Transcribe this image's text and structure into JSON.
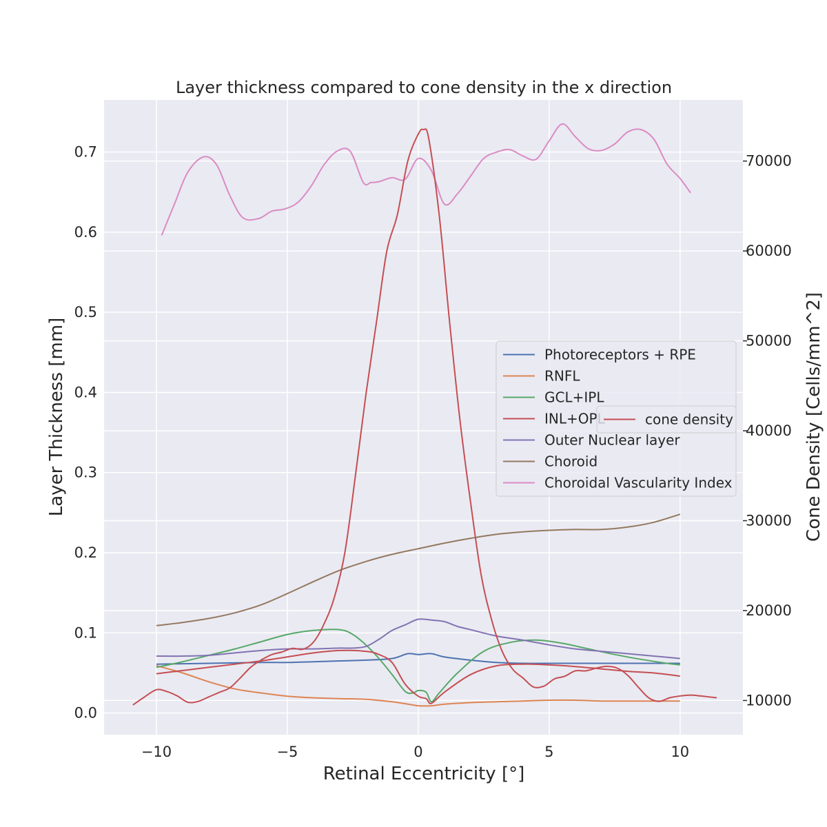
{
  "chart_data": {
    "type": "line",
    "title": "Layer thickness compared to cone density in the x direction",
    "xlabel": "Retinal Eccentricity [°]",
    "ylabel": "Layer Thickness [mm]",
    "y2label": "Cone Density [Cells/mm^2]",
    "xlim": [
      -12.0,
      12.4
    ],
    "ylim": [
      -0.027,
      0.765
    ],
    "y2lim": [
      6200,
      76800
    ],
    "xticks": [
      -10,
      -5,
      0,
      5,
      10
    ],
    "xtick_labels": [
      "−10",
      "−5",
      "0",
      "5",
      "10"
    ],
    "yticks": [
      0.0,
      0.1,
      0.2,
      0.3,
      0.4,
      0.5,
      0.6,
      0.7
    ],
    "ytick_labels": [
      "0.0",
      "0.1",
      "0.2",
      "0.3",
      "0.4",
      "0.5",
      "0.6",
      "0.7"
    ],
    "y2ticks": [
      10000,
      20000,
      30000,
      40000,
      50000,
      60000,
      70000
    ],
    "y2tick_labels": [
      "10000",
      "20000",
      "30000",
      "40000",
      "50000",
      "60000",
      "70000"
    ],
    "grid": true,
    "legend_left_placement": "center-right",
    "legend_right_placement": "center-right",
    "series": [
      {
        "name": "Photoreceptors + RPE",
        "color": "#4c72b0",
        "axis": "left",
        "x": [
          -10,
          -8,
          -6,
          -5,
          -4,
          -3,
          -2,
          -1,
          -0.4,
          0,
          0.5,
          1,
          2,
          3,
          4,
          5,
          6,
          7,
          8,
          9,
          10
        ],
        "y": [
          0.061,
          0.062,
          0.063,
          0.063,
          0.064,
          0.065,
          0.066,
          0.068,
          0.074,
          0.073,
          0.074,
          0.07,
          0.066,
          0.063,
          0.062,
          0.062,
          0.062,
          0.062,
          0.062,
          0.062,
          0.062
        ]
      },
      {
        "name": "RNFL",
        "color": "#dd8452",
        "axis": "left",
        "x": [
          -10,
          -9,
          -8,
          -7,
          -6,
          -5,
          -4,
          -3,
          -2,
          -1,
          -0.2,
          0,
          0.5,
          1,
          2,
          3,
          4,
          5,
          6,
          7,
          8,
          9,
          10
        ],
        "y": [
          0.059,
          0.05,
          0.039,
          0.03,
          0.025,
          0.021,
          0.019,
          0.018,
          0.017,
          0.014,
          0.01,
          0.009,
          0.009,
          0.011,
          0.013,
          0.014,
          0.015,
          0.016,
          0.016,
          0.015,
          0.015,
          0.015,
          0.015
        ]
      },
      {
        "name": "GCL+IPL",
        "color": "#55a868",
        "axis": "left",
        "x": [
          -10,
          -9,
          -8,
          -7,
          -6,
          -5,
          -4,
          -3,
          -2.5,
          -2,
          -1.5,
          -1,
          -0.5,
          -0.2,
          0,
          0.3,
          0.5,
          0.8,
          1.5,
          2.5,
          3.5,
          4.5,
          5.5,
          6.5,
          7.5,
          8.5,
          9.5,
          10
        ],
        "y": [
          0.057,
          0.064,
          0.072,
          0.08,
          0.089,
          0.098,
          0.103,
          0.104,
          0.098,
          0.085,
          0.068,
          0.048,
          0.027,
          0.025,
          0.028,
          0.026,
          0.014,
          0.025,
          0.05,
          0.077,
          0.088,
          0.091,
          0.087,
          0.08,
          0.073,
          0.067,
          0.062,
          0.06
        ]
      },
      {
        "name": "INL+OPL",
        "color": "#c44e52",
        "axis": "left",
        "x": [
          -10,
          -9,
          -8,
          -7,
          -6,
          -5,
          -4,
          -3,
          -2,
          -1.5,
          -1,
          -0.5,
          0,
          0.3,
          0.5,
          1,
          2,
          3,
          4,
          5,
          6,
          7,
          8,
          9,
          10
        ],
        "y": [
          0.049,
          0.053,
          0.057,
          0.061,
          0.065,
          0.07,
          0.075,
          0.078,
          0.077,
          0.073,
          0.063,
          0.036,
          0.021,
          0.018,
          0.012,
          0.026,
          0.048,
          0.059,
          0.061,
          0.06,
          0.058,
          0.055,
          0.052,
          0.05,
          0.046
        ]
      },
      {
        "name": "Outer Nuclear layer",
        "color": "#8172b3",
        "axis": "left",
        "x": [
          -10,
          -9,
          -8,
          -7,
          -6,
          -5,
          -4,
          -3,
          -2.5,
          -2,
          -1.5,
          -1,
          -0.5,
          0,
          0.5,
          1,
          1.5,
          2,
          3,
          4,
          5,
          6,
          7,
          8,
          9,
          10
        ],
        "y": [
          0.071,
          0.071,
          0.072,
          0.075,
          0.078,
          0.08,
          0.08,
          0.081,
          0.081,
          0.083,
          0.092,
          0.103,
          0.11,
          0.117,
          0.116,
          0.114,
          0.108,
          0.104,
          0.096,
          0.091,
          0.085,
          0.08,
          0.077,
          0.074,
          0.071,
          0.068
        ]
      },
      {
        "name": "Choroid",
        "color": "#937860",
        "axis": "left",
        "x": [
          -10,
          -9,
          -8,
          -7,
          -6,
          -5,
          -4,
          -3,
          -2,
          -1,
          0,
          1,
          2,
          3,
          4,
          5,
          6,
          7,
          8,
          9,
          10
        ],
        "y": [
          0.109,
          0.113,
          0.118,
          0.125,
          0.135,
          0.149,
          0.164,
          0.178,
          0.189,
          0.198,
          0.205,
          0.212,
          0.218,
          0.223,
          0.226,
          0.228,
          0.229,
          0.229,
          0.232,
          0.238,
          0.248
        ]
      },
      {
        "name": "Choroidal Vascularity Index",
        "color": "#da8bc3",
        "axis": "left",
        "x": [
          -9.8,
          -9.3,
          -8.8,
          -8.2,
          -7.7,
          -7.2,
          -6.7,
          -6.1,
          -5.6,
          -5.1,
          -4.6,
          -4.1,
          -3.6,
          -3.1,
          -2.6,
          -2.1,
          -1.8,
          -1.5,
          -1.0,
          -0.5,
          0,
          0.5,
          1.0,
          1.5,
          2.0,
          2.5,
          3.0,
          3.5,
          4.0,
          4.5,
          5.0,
          5.5,
          6.0,
          6.5,
          7.0,
          7.5,
          8.0,
          8.5,
          9.0,
          9.5,
          10.0,
          10.4
        ],
        "y": [
          0.596,
          0.636,
          0.675,
          0.694,
          0.684,
          0.646,
          0.618,
          0.617,
          0.626,
          0.629,
          0.637,
          0.657,
          0.684,
          0.701,
          0.701,
          0.662,
          0.662,
          0.663,
          0.668,
          0.666,
          0.692,
          0.677,
          0.635,
          0.648,
          0.67,
          0.692,
          0.7,
          0.703,
          0.695,
          0.691,
          0.714,
          0.735,
          0.719,
          0.704,
          0.702,
          0.71,
          0.725,
          0.728,
          0.716,
          0.685,
          0.667,
          0.649
        ]
      },
      {
        "name": "cone density",
        "color": "#c44e52",
        "axis": "right",
        "x": [
          -10.9,
          -10.5,
          -10.0,
          -9.6,
          -9.2,
          -8.8,
          -8.4,
          -8.0,
          -7.6,
          -7.2,
          -6.8,
          -6.4,
          -6.0,
          -5.6,
          -5.2,
          -4.8,
          -4.4,
          -4.0,
          -3.6,
          -3.2,
          -2.8,
          -2.4,
          -2.0,
          -1.6,
          -1.2,
          -0.8,
          -0.4,
          0,
          0.2,
          0.4,
          0.8,
          1.2,
          1.6,
          2.0,
          2.4,
          2.8,
          3.2,
          3.6,
          4.0,
          4.4,
          4.8,
          5.2,
          5.6,
          6.0,
          6.4,
          6.8,
          7.2,
          7.6,
          8.0,
          8.4,
          8.8,
          9.2,
          9.6,
          10.0,
          10.4,
          10.8,
          11.4
        ],
        "y": [
          9500,
          10300,
          11200,
          11000,
          10500,
          9800,
          9900,
          10400,
          10900,
          11400,
          12500,
          13700,
          14500,
          15100,
          15400,
          15800,
          15700,
          16500,
          18500,
          21500,
          26500,
          35000,
          44000,
          52000,
          60000,
          64000,
          70000,
          73000,
          73500,
          72500,
          64000,
          52000,
          41000,
          32000,
          24000,
          19000,
          15500,
          13500,
          12500,
          11500,
          11600,
          12400,
          12700,
          13300,
          13300,
          13600,
          13800,
          13600,
          12800,
          11500,
          10300,
          9900,
          10300,
          10500,
          10600,
          10500,
          10300
        ]
      }
    ]
  }
}
